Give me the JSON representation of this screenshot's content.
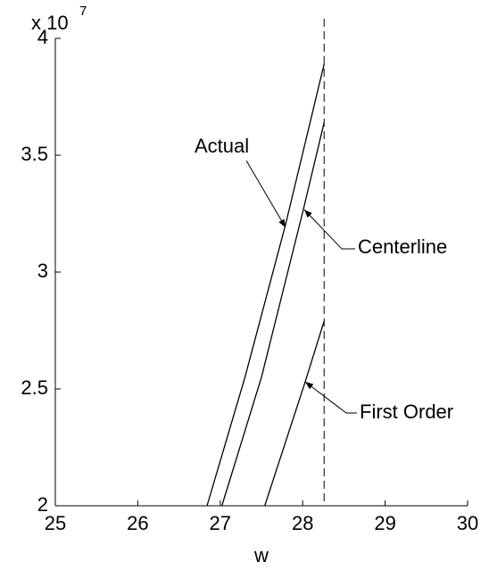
{
  "chart_data": {
    "type": "line",
    "xlabel": "w",
    "y_multiplier": "x 10",
    "y_exponent": "7",
    "xlim": [
      25,
      30
    ],
    "xticks": [
      25,
      26,
      27,
      28,
      29,
      30
    ],
    "ylim": [
      2,
      4
    ],
    "yticks": [
      2,
      2.5,
      3,
      3.5,
      4
    ],
    "vline": 28.26,
    "color": "#000000",
    "series": [
      {
        "name": "Actual",
        "color": "#000000",
        "x": [
          26.84,
          27.3,
          27.79,
          28.26
        ],
        "values": [
          2,
          2.55,
          3.2,
          3.89
        ]
      },
      {
        "name": "Centerline",
        "color": "#000000",
        "x": [
          27.02,
          27.5,
          28.01,
          28.26
        ],
        "values": [
          2,
          2.55,
          3.27,
          3.64
        ]
      },
      {
        "name": "First Order",
        "color": "#000000",
        "x": [
          27.54,
          28.03,
          28.26
        ],
        "values": [
          2,
          2.53,
          2.79
        ]
      }
    ]
  }
}
